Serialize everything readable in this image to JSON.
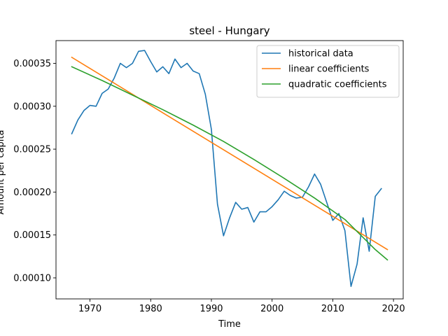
{
  "chart_data": {
    "type": "line",
    "title": "steel - Hungary",
    "xlabel": "Time",
    "ylabel": "Amount per capita",
    "xlim": [
      1964.4,
      2021.6
    ],
    "ylim": [
      7.55e-05,
      0.0003765
    ],
    "xticks": [
      1970,
      1980,
      1990,
      2000,
      2010,
      2020
    ],
    "yticks": [
      0.0001,
      0.00015,
      0.0002,
      0.00025,
      0.0003,
      0.00035
    ],
    "ytick_labels": [
      "0.00010",
      "0.00015",
      "0.00020",
      "0.00025",
      "0.00030",
      "0.00035"
    ],
    "legend_position": "top-right",
    "series": [
      {
        "name": "historical data",
        "color": "#1f77b4",
        "x": [
          1967,
          1968,
          1969,
          1970,
          1971,
          1972,
          1973,
          1974,
          1975,
          1976,
          1977,
          1978,
          1979,
          1980,
          1981,
          1982,
          1983,
          1984,
          1985,
          1986,
          1987,
          1988,
          1989,
          1990,
          1991,
          1992,
          1993,
          1994,
          1995,
          1996,
          1997,
          1998,
          1999,
          2000,
          2001,
          2002,
          2003,
          2004,
          2005,
          2006,
          2007,
          2008,
          2009,
          2010,
          2011,
          2012,
          2013,
          2014,
          2015,
          2016,
          2017,
          2018
        ],
        "y": [
          0.000268,
          0.000284,
          0.000295,
          0.000301,
          0.0003,
          0.000315,
          0.00032,
          0.000333,
          0.00035,
          0.000345,
          0.00035,
          0.000364,
          0.000365,
          0.000352,
          0.00034,
          0.000346,
          0.000338,
          0.000355,
          0.000345,
          0.00035,
          0.000341,
          0.000338,
          0.000314,
          0.000273,
          0.000186,
          0.000149,
          0.00017,
          0.000188,
          0.00018,
          0.000182,
          0.000165,
          0.000177,
          0.000177,
          0.000183,
          0.000191,
          0.000201,
          0.000196,
          0.000193,
          0.000194,
          0.000206,
          0.000221,
          0.000209,
          0.000188,
          0.000167,
          0.000175,
          0.000155,
          9e-05,
          0.000116,
          0.00017,
          0.000131,
          0.000195,
          0.000204
        ]
      },
      {
        "name": "linear coefficients",
        "color": "#ff7f0e",
        "x": [
          1967,
          2019
        ],
        "y": [
          0.000357,
          0.000133
        ]
      },
      {
        "name": "quadratic coefficients",
        "color": "#2ca02c",
        "x": [
          1967,
          1972,
          1977,
          1982,
          1987,
          1992,
          1997,
          2002,
          2007,
          2012,
          2017,
          2019
        ],
        "y": [
          0.000346,
          0.00033,
          0.000313,
          0.000296,
          0.000278,
          0.000259,
          0.000238,
          0.000216,
          0.000193,
          0.000168,
          0.000133,
          0.000121
        ]
      }
    ]
  }
}
